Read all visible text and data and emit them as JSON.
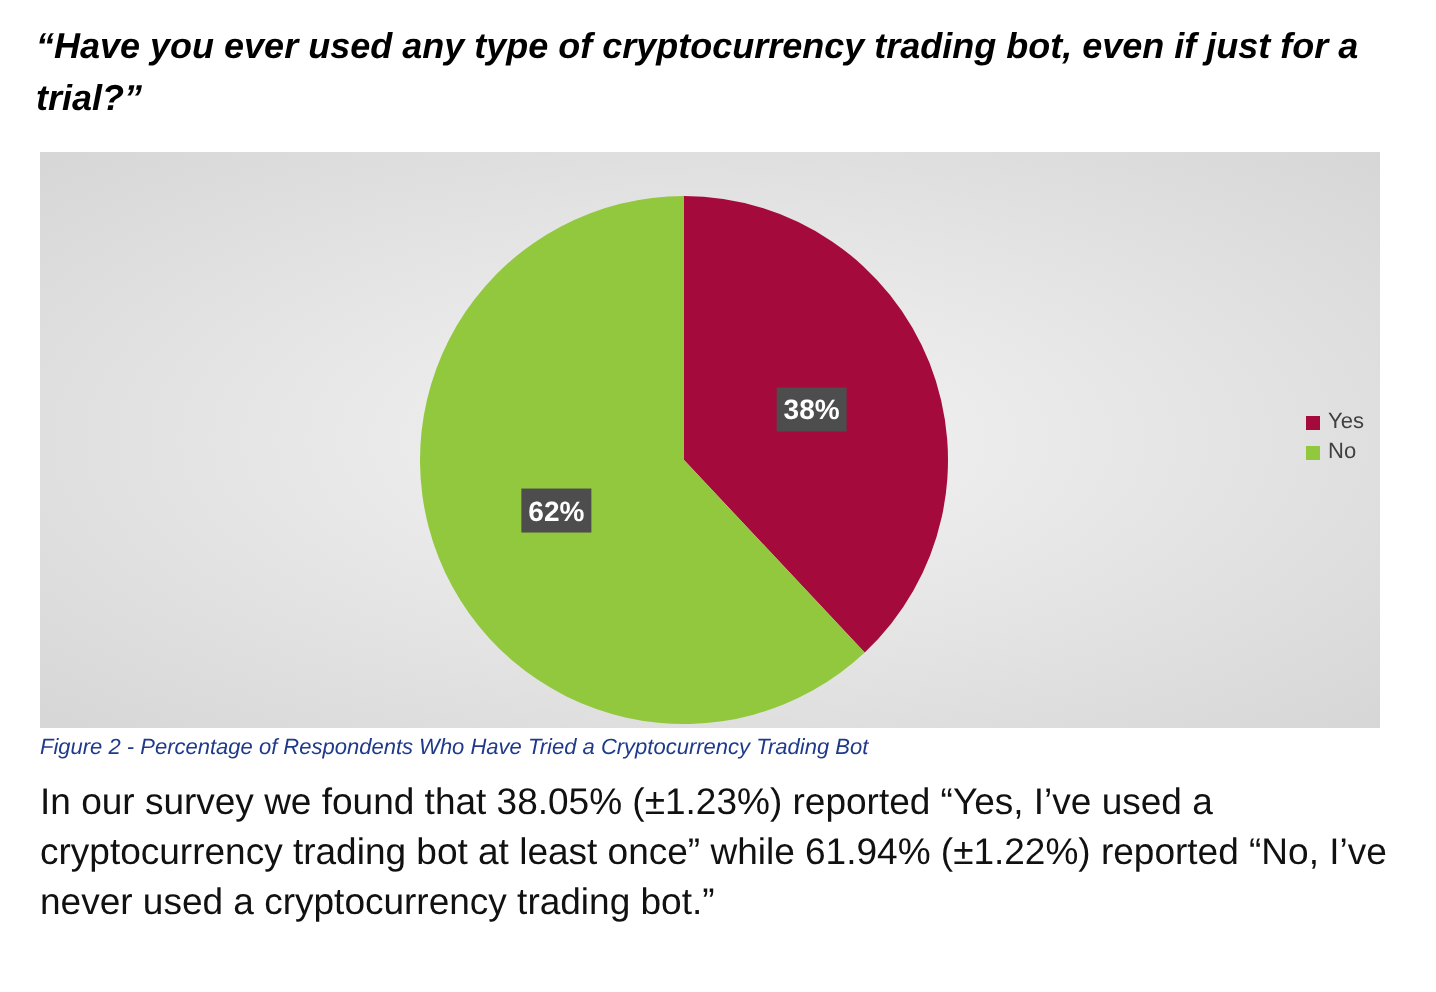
{
  "chart_data": {
    "type": "pie",
    "title": "“Have you ever used any type of cryptocurrency trading bot, even if just for a trial?”",
    "categories": [
      "Yes",
      "No"
    ],
    "values": [
      38,
      62
    ],
    "colors": [
      "#a50a3c",
      "#92c83e"
    ],
    "value_labels": [
      "38%",
      "62%"
    ],
    "legend": "right",
    "annotations": [
      "Figure 2 - Percentage of Respondents Who Have Tried a Cryptocurrency Trading Bot",
      "In our survey we found that 38.05% (±1.23%) reported “Yes, I’ve used a cryptocurrency trading bot at least once” while 61.94% (±1.22%) reported “No, I’ve never used a cryptocurrency trading bot.”"
    ]
  }
}
